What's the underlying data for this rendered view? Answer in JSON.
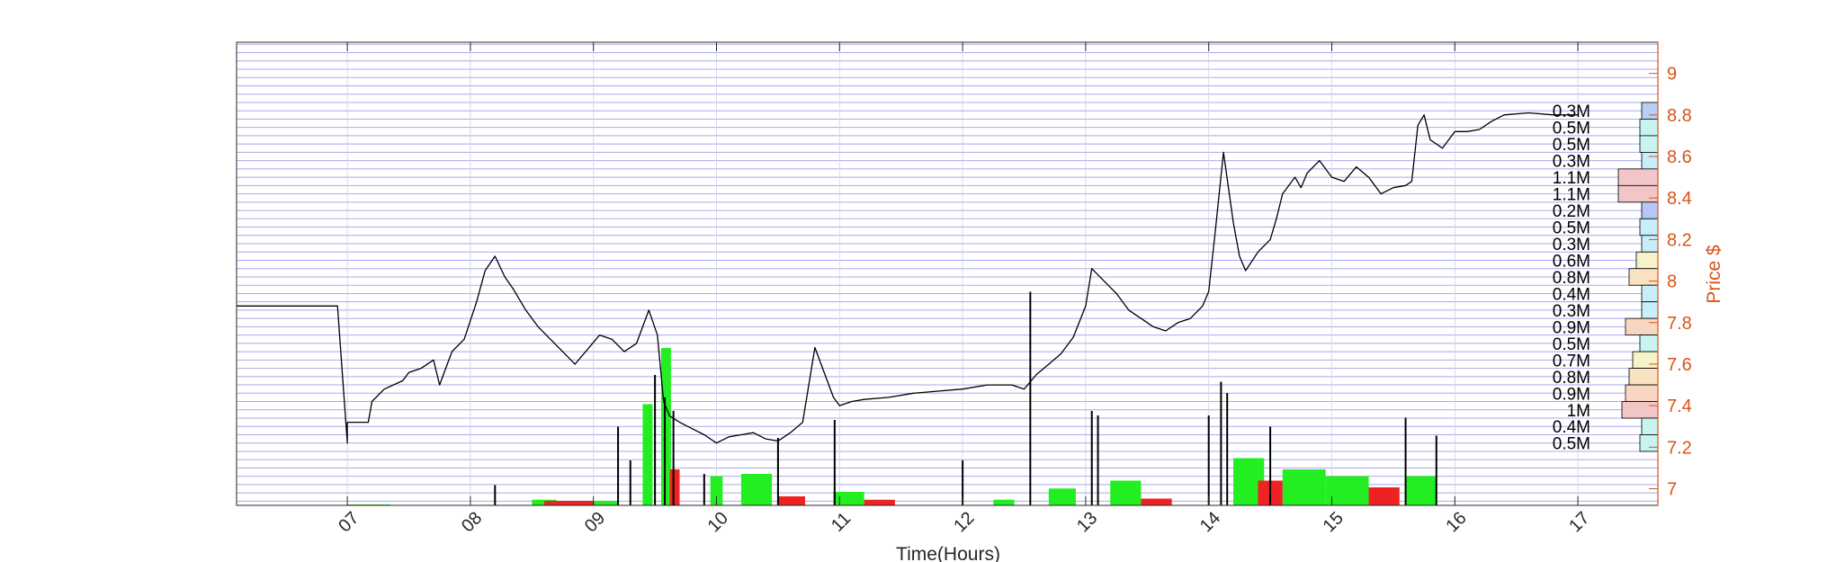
{
  "chart_data": {
    "type": "line",
    "xlabel": "Time(Hours)",
    "ylabel": "Price $",
    "xlim": [
      6.1,
      17.65
    ],
    "ylim": [
      6.92,
      9.15
    ],
    "x_ticks": [
      {
        "value": 7,
        "label": "07"
      },
      {
        "value": 8,
        "label": "08"
      },
      {
        "value": 9,
        "label": "09"
      },
      {
        "value": 10,
        "label": "10"
      },
      {
        "value": 11,
        "label": "11"
      },
      {
        "value": 12,
        "label": "12"
      },
      {
        "value": 13,
        "label": "13"
      },
      {
        "value": 14,
        "label": "14"
      },
      {
        "value": 15,
        "label": "15"
      },
      {
        "value": 16,
        "label": "16"
      },
      {
        "value": 17,
        "label": "17"
      }
    ],
    "y_ticks": [
      {
        "value": 7,
        "label": "7"
      },
      {
        "value": 7.2,
        "label": "7.2"
      },
      {
        "value": 7.4,
        "label": "7.4"
      },
      {
        "value": 7.6,
        "label": "7.6"
      },
      {
        "value": 7.8,
        "label": "7.8"
      },
      {
        "value": 8,
        "label": "8"
      },
      {
        "value": 8.2,
        "label": "8.2"
      },
      {
        "value": 8.4,
        "label": "8.4"
      },
      {
        "value": 8.6,
        "label": "8.6"
      },
      {
        "value": 8.8,
        "label": "8.8"
      },
      {
        "value": 9,
        "label": "9"
      }
    ],
    "price_series": {
      "name": "Price",
      "x": [
        6.1,
        6.92,
        7.0,
        7.0,
        7.17,
        7.2,
        7.3,
        7.45,
        7.5,
        7.6,
        7.7,
        7.75,
        7.85,
        7.95,
        8.05,
        8.12,
        8.2,
        8.28,
        8.35,
        8.45,
        8.55,
        8.65,
        8.75,
        8.85,
        8.95,
        9.05,
        9.15,
        9.25,
        9.35,
        9.45,
        9.52,
        9.57,
        9.62,
        9.7,
        9.8,
        9.9,
        10.0,
        10.1,
        10.2,
        10.3,
        10.4,
        10.5,
        10.6,
        10.7,
        10.8,
        10.9,
        10.95,
        11.0,
        11.1,
        11.2,
        11.4,
        11.6,
        11.8,
        12.0,
        12.2,
        12.4,
        12.5,
        12.6,
        12.7,
        12.8,
        12.9,
        13.0,
        13.05,
        13.15,
        13.25,
        13.35,
        13.45,
        13.55,
        13.65,
        13.75,
        13.85,
        13.95,
        14.0,
        14.05,
        14.12,
        14.2,
        14.25,
        14.3,
        14.4,
        14.5,
        14.55,
        14.6,
        14.7,
        14.75,
        14.8,
        14.9,
        15.0,
        15.1,
        15.2,
        15.3,
        15.4,
        15.5,
        15.6,
        15.65,
        15.7,
        15.75,
        15.8,
        15.9,
        15.95,
        16.0,
        16.1,
        16.2,
        16.3,
        16.4,
        16.6,
        16.8,
        17.0
      ],
      "y": [
        7.88,
        7.88,
        7.22,
        7.32,
        7.32,
        7.42,
        7.48,
        7.52,
        7.56,
        7.58,
        7.62,
        7.5,
        7.66,
        7.72,
        7.9,
        8.05,
        8.12,
        8.02,
        7.96,
        7.86,
        7.78,
        7.72,
        7.66,
        7.6,
        7.67,
        7.74,
        7.72,
        7.66,
        7.7,
        7.86,
        7.74,
        7.42,
        7.35,
        7.32,
        7.29,
        7.26,
        7.22,
        7.25,
        7.26,
        7.27,
        7.24,
        7.23,
        7.27,
        7.32,
        7.68,
        7.52,
        7.44,
        7.4,
        7.42,
        7.43,
        7.44,
        7.46,
        7.47,
        7.48,
        7.5,
        7.5,
        7.48,
        7.55,
        7.6,
        7.65,
        7.73,
        7.88,
        8.06,
        8.0,
        7.94,
        7.86,
        7.82,
        7.78,
        7.76,
        7.8,
        7.82,
        7.88,
        7.95,
        8.22,
        8.62,
        8.28,
        8.12,
        8.05,
        8.14,
        8.2,
        8.3,
        8.42,
        8.5,
        8.45,
        8.52,
        8.58,
        8.5,
        8.48,
        8.55,
        8.5,
        8.42,
        8.45,
        8.46,
        8.48,
        8.75,
        8.8,
        8.68,
        8.64,
        8.68,
        8.72,
        8.72,
        8.73,
        8.77,
        8.8,
        8.81,
        8.8,
        8.8
      ]
    },
    "volume_bars": {
      "green": [
        {
          "x0": 7.0,
          "x1": 7.35,
          "value": 0.004
        },
        {
          "x0": 8.5,
          "x1": 8.7,
          "value": 0.025
        },
        {
          "x0": 8.95,
          "x1": 9.2,
          "value": 0.02
        },
        {
          "x0": 9.4,
          "x1": 9.48,
          "value": 0.45
        },
        {
          "x0": 9.55,
          "x1": 9.63,
          "value": 0.7
        },
        {
          "x0": 9.95,
          "x1": 10.05,
          "value": 0.13
        },
        {
          "x0": 10.2,
          "x1": 10.45,
          "value": 0.14
        },
        {
          "x0": 10.95,
          "x1": 11.2,
          "value": 0.06
        },
        {
          "x0": 12.25,
          "x1": 12.42,
          "value": 0.025
        },
        {
          "x0": 12.7,
          "x1": 12.92,
          "value": 0.075
        },
        {
          "x0": 13.2,
          "x1": 13.45,
          "value": 0.11
        },
        {
          "x0": 14.2,
          "x1": 14.45,
          "value": 0.21
        },
        {
          "x0": 14.6,
          "x1": 14.95,
          "value": 0.16
        },
        {
          "x0": 14.95,
          "x1": 15.3,
          "value": 0.13
        },
        {
          "x0": 15.6,
          "x1": 15.85,
          "value": 0.13
        }
      ],
      "red": [
        {
          "x0": 8.6,
          "x1": 9.0,
          "value": 0.02
        },
        {
          "x0": 9.62,
          "x1": 9.7,
          "value": 0.16
        },
        {
          "x0": 10.5,
          "x1": 10.72,
          "value": 0.04
        },
        {
          "x0": 11.2,
          "x1": 11.45,
          "value": 0.025
        },
        {
          "x0": 13.45,
          "x1": 13.7,
          "value": 0.03
        },
        {
          "x0": 14.4,
          "x1": 14.6,
          "value": 0.11
        },
        {
          "x0": 15.3,
          "x1": 15.55,
          "value": 0.08
        }
      ],
      "spikes": [
        {
          "x": 8.2,
          "value": 0.09
        },
        {
          "x": 9.2,
          "value": 0.35
        },
        {
          "x": 9.3,
          "value": 0.2
        },
        {
          "x": 9.5,
          "value": 0.58
        },
        {
          "x": 9.58,
          "value": 0.48
        },
        {
          "x": 9.65,
          "value": 0.42
        },
        {
          "x": 9.9,
          "value": 0.14
        },
        {
          "x": 10.5,
          "value": 0.3
        },
        {
          "x": 10.96,
          "value": 0.38
        },
        {
          "x": 12.0,
          "value": 0.2
        },
        {
          "x": 12.55,
          "value": 0.95
        },
        {
          "x": 13.05,
          "value": 0.42
        },
        {
          "x": 13.1,
          "value": 0.4
        },
        {
          "x": 14.0,
          "value": 0.4
        },
        {
          "x": 14.1,
          "value": 0.55
        },
        {
          "x": 14.15,
          "value": 0.5
        },
        {
          "x": 14.5,
          "value": 0.35
        },
        {
          "x": 15.6,
          "value": 0.39
        },
        {
          "x": 15.85,
          "value": 0.31
        }
      ]
    },
    "volume_profile": [
      {
        "price": 8.82,
        "label": "0.3M",
        "volume": 0.3,
        "color": "#b8cff5"
      },
      {
        "price": 8.74,
        "label": "0.5M",
        "volume": 0.5,
        "color": "#c8f3ef"
      },
      {
        "price": 8.66,
        "label": "0.5M",
        "volume": 0.5,
        "color": "#c8f3ef"
      },
      {
        "price": 8.58,
        "label": "0.3M",
        "volume": 0.3,
        "color": "#c8eefa"
      },
      {
        "price": 8.5,
        "label": "1.1M",
        "volume": 1.1,
        "color": "#f2c6c6"
      },
      {
        "price": 8.42,
        "label": "1.1M",
        "volume": 1.1,
        "color": "#f2c6c6"
      },
      {
        "price": 8.34,
        "label": "0.2M",
        "volume": 0.2,
        "color": "#b8c6f5"
      },
      {
        "price": 8.26,
        "label": "0.5M",
        "volume": 0.5,
        "color": "#c8eefa"
      },
      {
        "price": 8.18,
        "label": "0.3M",
        "volume": 0.3,
        "color": "#c8eefa"
      },
      {
        "price": 8.1,
        "label": "0.6M",
        "volume": 0.6,
        "color": "#f6f3c8"
      },
      {
        "price": 8.02,
        "label": "0.8M",
        "volume": 0.8,
        "color": "#f8e2c2"
      },
      {
        "price": 7.94,
        "label": "0.4M",
        "volume": 0.4,
        "color": "#c8eefa"
      },
      {
        "price": 7.86,
        "label": "0.3M",
        "volume": 0.3,
        "color": "#c8eefa"
      },
      {
        "price": 7.78,
        "label": "0.9M",
        "volume": 0.9,
        "color": "#f8d6c2"
      },
      {
        "price": 7.7,
        "label": "0.5M",
        "volume": 0.5,
        "color": "#c8f3ef"
      },
      {
        "price": 7.62,
        "label": "0.7M",
        "volume": 0.7,
        "color": "#f6f3c8"
      },
      {
        "price": 7.54,
        "label": "0.8M",
        "volume": 0.8,
        "color": "#f8e2c2"
      },
      {
        "price": 7.46,
        "label": "0.9M",
        "volume": 0.9,
        "color": "#f8d6c2"
      },
      {
        "price": 7.38,
        "label": "1M",
        "volume": 1.0,
        "color": "#f2c6c6"
      },
      {
        "price": 7.3,
        "label": "0.4M",
        "volume": 0.4,
        "color": "#c8f3ef"
      },
      {
        "price": 7.22,
        "label": "0.5M",
        "volume": 0.5,
        "color": "#c8f3ef"
      }
    ],
    "colors": {
      "axis_right": "#d95319",
      "grid": "#a8a8f0",
      "frame": "#262626",
      "price_line": "#000000",
      "volume_green": "#22ee22",
      "volume_red": "#ee2222"
    }
  }
}
